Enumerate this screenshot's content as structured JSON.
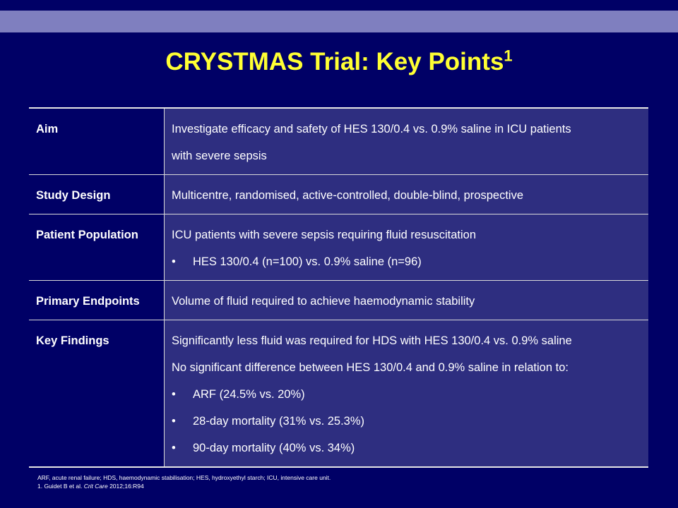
{
  "slide": {
    "title": "CRYSTMAS Trial: Key Points",
    "title_ref": "1",
    "rows": [
      {
        "label": "Aim",
        "lines": [
          "Investigate efficacy and safety of HES 130/0.4 vs. 0.9% saline in ICU patients",
          "with severe sepsis"
        ],
        "bullets": []
      },
      {
        "label": "Study Design",
        "lines": [
          "Multicentre, randomised, active-controlled, double-blind, prospective"
        ],
        "bullets": []
      },
      {
        "label": "Patient Population",
        "lines": [
          "ICU patients with severe sepsis requiring fluid resuscitation"
        ],
        "bullets": [
          "HES 130/0.4 (n=100) vs. 0.9% saline (n=96)"
        ]
      },
      {
        "label": "Primary Endpoints",
        "lines": [
          "Volume of fluid required to achieve haemodynamic stability"
        ],
        "bullets": []
      },
      {
        "label": "Key Findings",
        "lines": [
          "Significantly less fluid was required for HDS with HES 130/0.4 vs. 0.9% saline",
          "No significant difference between HES 130/0.4 and 0.9% saline in relation to:"
        ],
        "bullets": [
          "ARF (24.5% vs. 20%)",
          "28-day mortality (31% vs. 25.3%)",
          "90-day mortality (40% vs. 34%)"
        ]
      }
    ],
    "bullet_char": "•",
    "footnote": {
      "abbreviations": "ARF, acute renal failure; HDS, haemodynamic stabilisation; HES, hydroxyethyl starch; ICU, intensive care unit.",
      "ref_prefix": "1. Guidet B et al. ",
      "ref_journal": "Crit Care",
      "ref_suffix": " 2012;16:R94"
    }
  }
}
